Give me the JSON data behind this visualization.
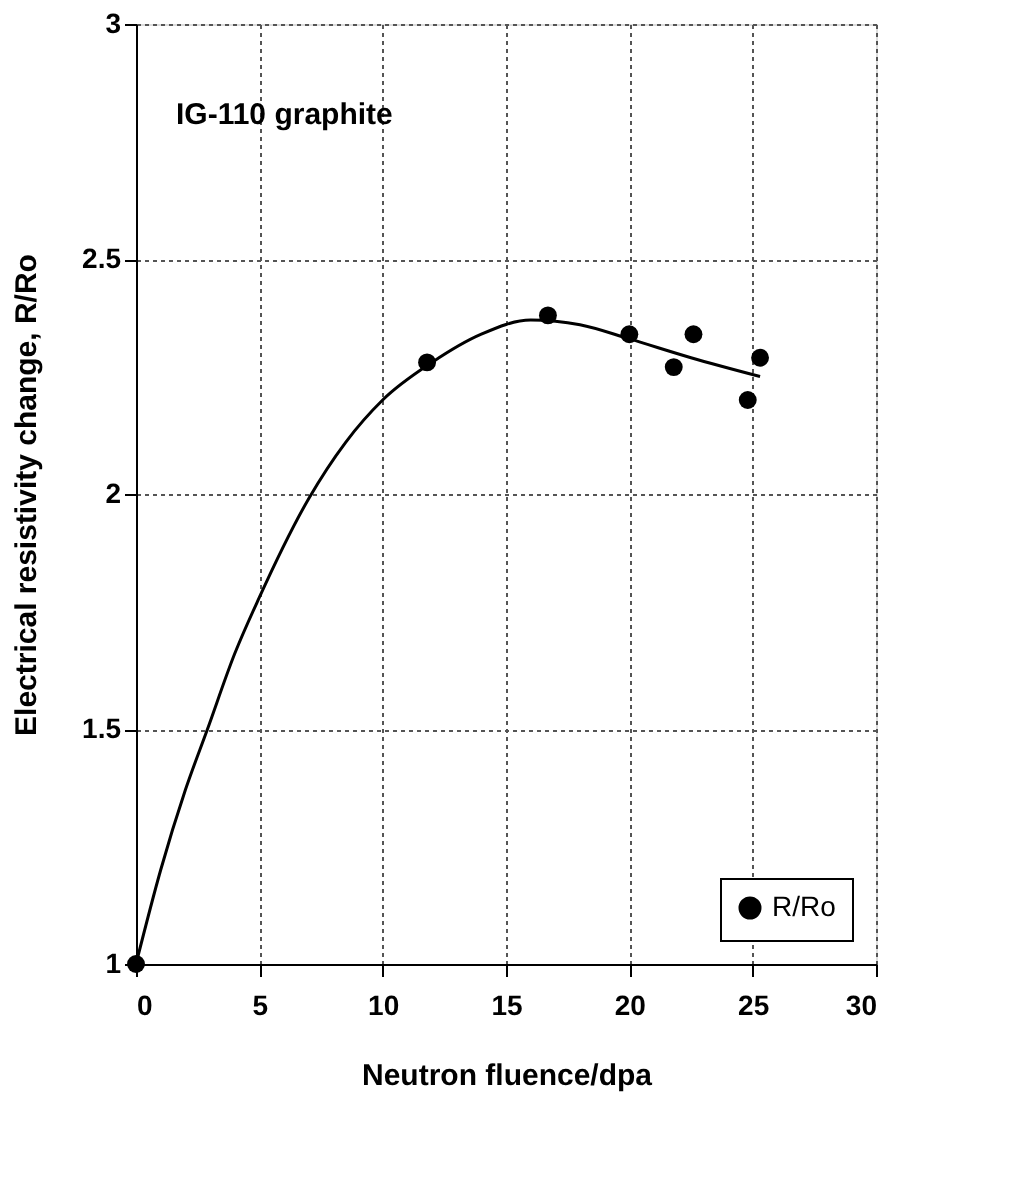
{
  "chart_data": {
    "type": "scatter",
    "xlabel": "Neutron fluence/dpa",
    "ylabel": "Electrical resistivity change, R/Ro",
    "annotations": [
      "IG-110 graphite"
    ],
    "series": [
      {
        "type": "line",
        "color": "#000000",
        "marker": "none",
        "x": [
          0,
          1,
          2,
          2.9,
          4,
          5,
          7,
          8.5,
          10,
          12,
          14,
          16,
          18,
          20,
          22.5,
          25.3
        ],
        "values": [
          1,
          1.2,
          1.37,
          1.5,
          1.66,
          1.78,
          1.99,
          2.11,
          2.2,
          2.28,
          2.34,
          2.37,
          2.36,
          2.33,
          2.29,
          2.25
        ]
      },
      {
        "name": "R/Ro",
        "color": "#000000",
        "marker": "circle",
        "x": [
          0,
          11.8,
          16.7,
          20.0,
          21.8,
          22.6,
          24.8,
          25.3
        ],
        "values": [
          1,
          2.28,
          2.38,
          2.34,
          2.27,
          2.34,
          2.2,
          2.29
        ]
      }
    ],
    "xlim": [
      0,
      30
    ],
    "xticks": [
      0,
      5,
      10,
      15,
      20,
      25,
      30
    ],
    "ylim": [
      1,
      3
    ],
    "yticks": [
      {
        "value": 1,
        "label": "1"
      },
      {
        "value": 1.5,
        "label": "1.5"
      },
      {
        "value": 2,
        "label": "2"
      },
      {
        "value": 2.5,
        "label": "2.5"
      },
      {
        "value": 3,
        "label": "3"
      }
    ],
    "grid": true,
    "legend": "bottom right"
  }
}
